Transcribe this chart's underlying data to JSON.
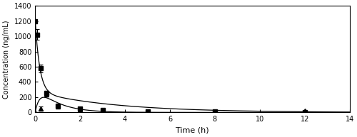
{
  "title": "",
  "xlabel": "Time (h)",
  "ylabel": "Concentration (ng/mL)",
  "xlim": [
    0,
    14
  ],
  "ylim": [
    0,
    1400
  ],
  "yticks": [
    0,
    200,
    400,
    600,
    800,
    1000,
    1200,
    1400
  ],
  "xticks": [
    0,
    2,
    4,
    6,
    8,
    10,
    12,
    14
  ],
  "iv_time": [
    0.0,
    0.083,
    0.25,
    0.5,
    1.0,
    2.0,
    3.0,
    5.0,
    8.0,
    12.0
  ],
  "iv_conc": [
    1200,
    1020,
    580,
    255,
    90,
    50,
    28,
    15,
    10,
    8
  ],
  "iv_err": [
    0,
    70,
    50,
    30,
    18,
    10,
    7,
    4,
    3,
    2
  ],
  "oral_time": [
    0.0,
    0.25,
    0.5,
    1.0,
    2.0,
    3.0,
    5.0,
    8.0,
    12.0
  ],
  "oral_conc": [
    0,
    55,
    240,
    80,
    38,
    20,
    12,
    7,
    20
  ],
  "oral_err": [
    0,
    20,
    35,
    18,
    9,
    5,
    3,
    2,
    7
  ],
  "iv_fit_t": [
    0.0,
    0.083,
    0.25,
    0.5,
    1.0,
    2.0,
    3.0,
    5.0,
    8.0,
    12.0
  ],
  "oral_fit_t": [
    0.0,
    0.25,
    0.5,
    1.0,
    2.0,
    3.0,
    5.0,
    8.0,
    12.0
  ],
  "color": "#000000",
  "iv_marker": "s",
  "oral_marker": "^",
  "markersize": 4,
  "linewidth": 0.9,
  "figsize": [
    5.0,
    1.93
  ],
  "dpi": 100,
  "background_color": "#ffffff",
  "tick_fontsize": 7,
  "label_fontsize": 8,
  "ylabel_fontsize": 7
}
